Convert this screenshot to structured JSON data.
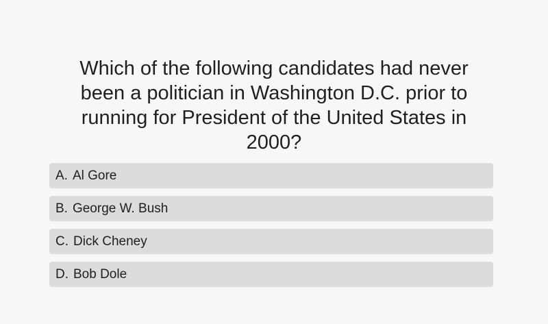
{
  "question": {
    "text": "Which of the following candidates had never been a politician in Washington D.C. prior to running for President of the United States in 2000?"
  },
  "answers": [
    {
      "letter": "A.",
      "label": "Al Gore"
    },
    {
      "letter": "B.",
      "label": "George W. Bush"
    },
    {
      "letter": "C.",
      "label": "Dick Cheney"
    },
    {
      "letter": "D.",
      "label": "Bob Dole"
    }
  ],
  "colors": {
    "background": "#f7f7f7",
    "answer_background": "#dcdcdc",
    "text": "#202020"
  }
}
